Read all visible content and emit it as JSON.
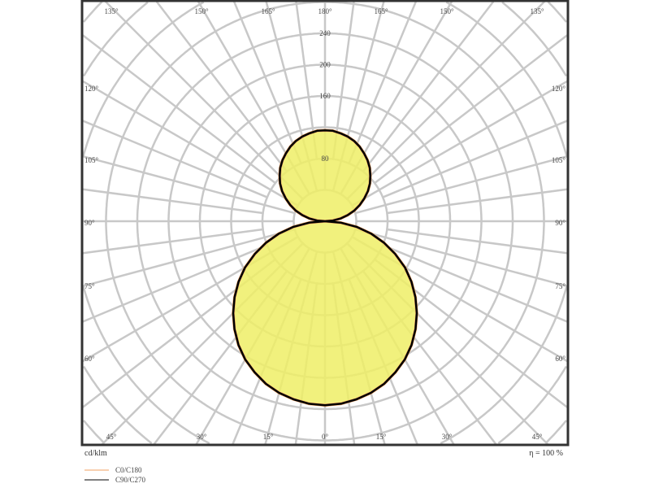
{
  "chart_data": {
    "type": "polar",
    "unit_label": "cd/klm",
    "efficiency_label": "η = 100 %",
    "radial_ticks": [
      80,
      160,
      200,
      240
    ],
    "radial_range": [
      0,
      280
    ],
    "radial_grid_step": 40,
    "grid": true,
    "angle_labels": {
      "top": [
        "135°",
        "150°",
        "165°",
        "180°",
        "165°",
        "150°",
        "135°"
      ],
      "left": [
        "120°",
        "105°",
        "90°",
        "75°",
        "60°"
      ],
      "right": [
        "120°",
        "105°",
        "90°",
        "75°",
        "60°"
      ],
      "bottom": [
        "45°",
        "30°",
        "15°",
        "0°",
        "15°",
        "30°",
        "45°"
      ]
    },
    "angles": [
      0,
      5,
      10,
      15,
      20,
      25,
      30,
      35,
      40,
      45,
      50,
      55,
      60,
      65,
      70,
      75,
      80,
      85,
      90,
      95,
      100,
      105,
      110,
      115,
      120,
      125,
      130,
      135,
      140,
      145,
      150,
      155,
      160,
      165,
      170,
      175,
      180
    ],
    "series": [
      {
        "name": "C0/C180",
        "color": "#f0a060",
        "values": [
          235,
          234,
          231,
          227,
          221,
          213,
          204,
          193,
          180,
          166,
          151,
          135,
          118,
          99,
          80,
          61,
          41,
          20,
          0,
          10,
          20,
          30,
          40,
          49,
          58,
          67,
          75,
          82,
          89,
          95,
          100,
          105,
          109,
          112,
          114,
          116,
          116
        ]
      },
      {
        "name": "C90/C270",
        "color": "#000000",
        "values": [
          235,
          234,
          231,
          227,
          221,
          213,
          204,
          193,
          180,
          166,
          151,
          135,
          118,
          99,
          80,
          61,
          41,
          20,
          0,
          10,
          20,
          30,
          40,
          49,
          58,
          67,
          75,
          82,
          89,
          95,
          100,
          105,
          109,
          112,
          114,
          116,
          116
        ]
      }
    ],
    "fill_color": "#eeee66",
    "legend_position": "bottom-left"
  }
}
